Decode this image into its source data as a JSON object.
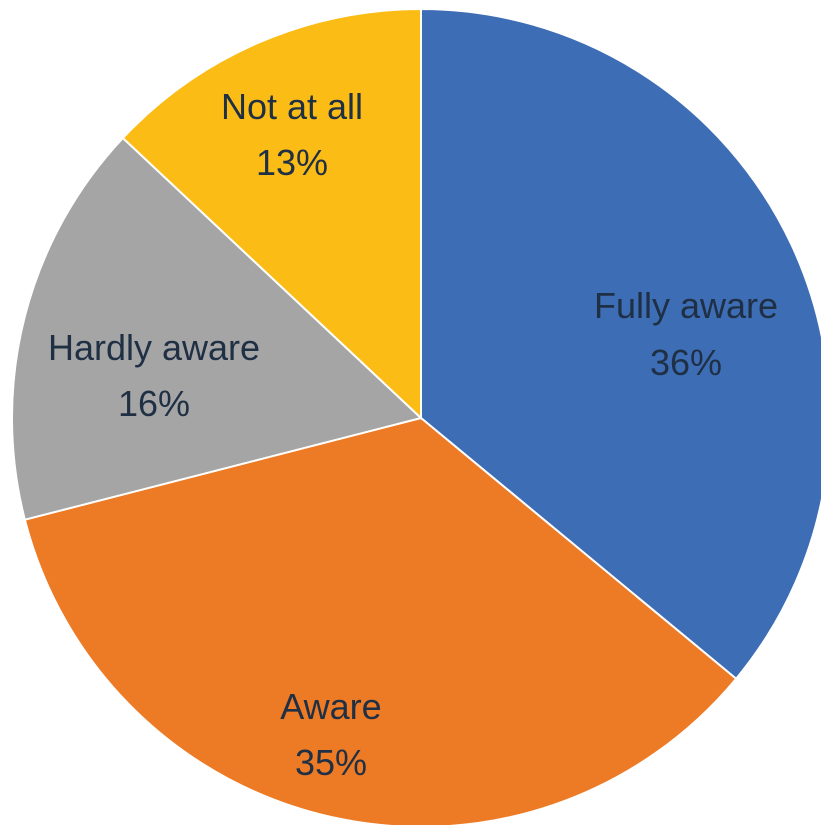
{
  "chart_data": {
    "type": "pie",
    "title": "",
    "start_angle_deg": 0,
    "direction": "clockwise",
    "slices": [
      {
        "name": "Fully aware",
        "percent_label": "36%",
        "value": 36,
        "color": "#3D6DB5"
      },
      {
        "name": "Aware",
        "percent_label": "35%",
        "value": 35,
        "color": "#ED7A25"
      },
      {
        "name": "Hardly aware",
        "percent_label": "16%",
        "value": 16,
        "color": "#A5A5A5"
      },
      {
        "name": "Not at all",
        "percent_label": "13%",
        "value": 13,
        "color": "#FBBC16"
      }
    ],
    "legend": "none",
    "data_labels": "inside"
  }
}
